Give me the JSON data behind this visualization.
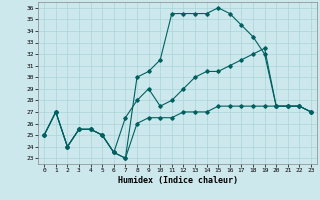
{
  "xlabel": "Humidex (Indice chaleur)",
  "xlim": [
    -0.5,
    23.5
  ],
  "ylim": [
    22.5,
    36.5
  ],
  "yticks": [
    23,
    24,
    25,
    26,
    27,
    28,
    29,
    30,
    31,
    32,
    33,
    34,
    35,
    36
  ],
  "xticks": [
    0,
    1,
    2,
    3,
    4,
    5,
    6,
    7,
    8,
    9,
    10,
    11,
    12,
    13,
    14,
    15,
    16,
    17,
    18,
    19,
    20,
    21,
    22,
    23
  ],
  "bg_color": "#cde8ec",
  "grid_color": "#a8d4d8",
  "line_color": "#006060",
  "lines": [
    {
      "x": [
        0,
        1,
        2,
        3,
        4,
        5,
        6,
        7,
        8,
        9,
        10,
        11,
        12,
        13,
        14,
        15,
        16,
        17,
        18,
        19,
        20,
        21,
        22,
        23
      ],
      "y": [
        25.0,
        27.0,
        24.0,
        25.5,
        25.5,
        25.0,
        23.5,
        23.0,
        30.0,
        30.5,
        31.5,
        35.5,
        35.5,
        35.5,
        35.5,
        36.0,
        35.5,
        34.5,
        33.5,
        32.0,
        27.5,
        27.5,
        27.5,
        27.0
      ]
    },
    {
      "x": [
        0,
        1,
        2,
        3,
        4,
        5,
        6,
        7,
        8,
        9,
        10,
        11,
        12,
        13,
        14,
        15,
        16,
        17,
        18,
        19,
        20,
        21,
        22,
        23
      ],
      "y": [
        25.0,
        27.0,
        24.0,
        25.5,
        25.5,
        25.0,
        23.5,
        26.5,
        28.0,
        29.0,
        27.5,
        28.0,
        29.0,
        30.0,
        30.5,
        30.5,
        31.0,
        31.5,
        32.0,
        32.5,
        27.5,
        27.5,
        27.5,
        27.0
      ]
    },
    {
      "x": [
        0,
        1,
        2,
        3,
        4,
        5,
        6,
        7,
        8,
        9,
        10,
        11,
        12,
        13,
        14,
        15,
        16,
        17,
        18,
        19,
        20,
        21,
        22,
        23
      ],
      "y": [
        25.0,
        27.0,
        24.0,
        25.5,
        25.5,
        25.0,
        23.5,
        23.0,
        26.0,
        26.5,
        26.5,
        26.5,
        27.0,
        27.0,
        27.0,
        27.5,
        27.5,
        27.5,
        27.5,
        27.5,
        27.5,
        27.5,
        27.5,
        27.0
      ]
    }
  ]
}
